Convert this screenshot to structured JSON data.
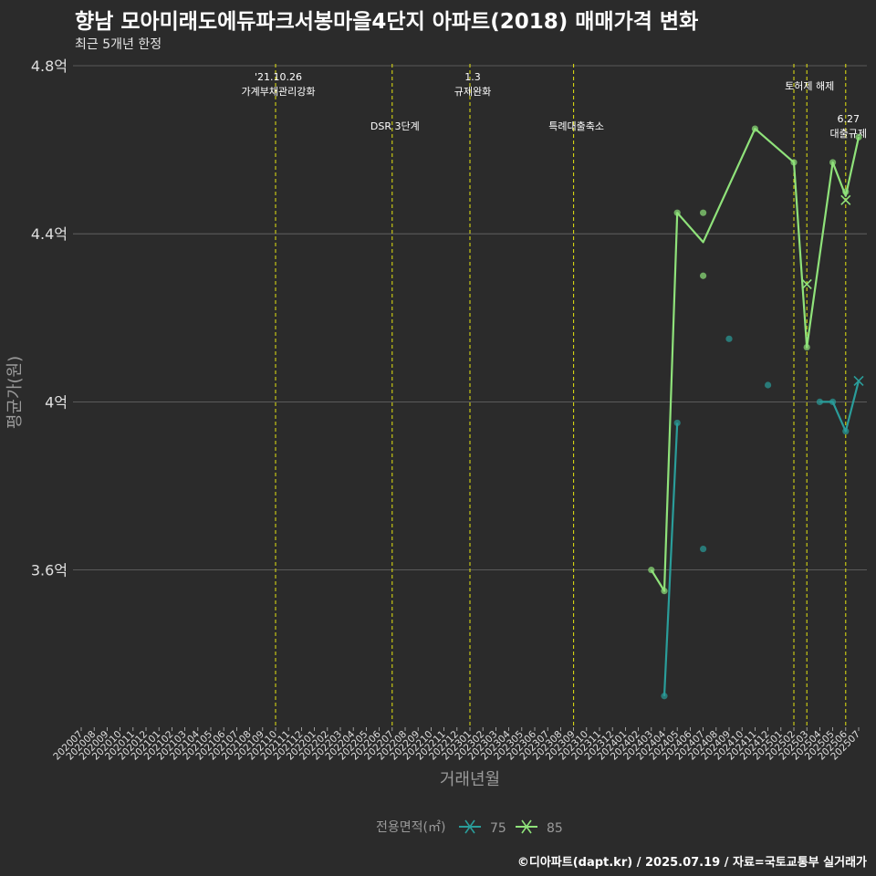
{
  "header": {
    "title": "향남 모아미래도에듀파크서봉마을4단지 아파트(2018) 매매가격 변화",
    "subtitle": "최근 5개년 한정"
  },
  "caption": "©디아파트(dapt.kr) / 2025.07.19 / 자료=국토교통부 실거래가",
  "colors": {
    "background": "#2b2b2b",
    "grid": "#6a6a6a",
    "event_line": "#e5e510",
    "series_75": "#2a9d9a",
    "series_85": "#8fe27a"
  },
  "chart_data": {
    "type": "line",
    "title": "향남 모아미래도에듀파크서봉마을4단지 아파트(2018) 매매가격 변화",
    "subtitle": "최근 5개년 한정",
    "xlabel": "거래년월",
    "ylabel": "평균가(원)",
    "ylim": [
      3.23,
      4.8
    ],
    "yticks": [
      {
        "value": 3.6,
        "label": "3.6억"
      },
      {
        "value": 4.0,
        "label": "4억"
      },
      {
        "value": 4.4,
        "label": "4.4억"
      },
      {
        "value": 4.8,
        "label": "4.8억"
      }
    ],
    "categories": [
      "202007",
      "202008",
      "202009",
      "202010",
      "202011",
      "202012",
      "202101",
      "202102",
      "202103",
      "202104",
      "202105",
      "202106",
      "202107",
      "202108",
      "202109",
      "202110",
      "202111",
      "202112",
      "202201",
      "202202",
      "202203",
      "202204",
      "202205",
      "202206",
      "202207",
      "202208",
      "202209",
      "202210",
      "202211",
      "202212",
      "202301",
      "202302",
      "202303",
      "202304",
      "202305",
      "202306",
      "202307",
      "202308",
      "202309",
      "202310",
      "202311",
      "202312",
      "202401",
      "202402",
      "202403",
      "202404",
      "202405",
      "202406",
      "202407",
      "202408",
      "202409",
      "202410",
      "202411",
      "202412",
      "202501",
      "202502",
      "202503",
      "202504",
      "202505",
      "202506",
      "202507"
    ],
    "legend_title": "전용면적(㎡)",
    "legend_position": "bottom",
    "series": [
      {
        "name": "75",
        "color_key": "series_75",
        "line": [
          {
            "x": "202404",
            "y": 3.3
          },
          {
            "x": "202405",
            "y": 3.95
          }
        ],
        "line2": [
          {
            "x": "202504",
            "y": 4.0
          },
          {
            "x": "202505",
            "y": 4.0
          },
          {
            "x": "202506",
            "y": 3.93
          },
          {
            "x": "202507",
            "y": 4.05
          }
        ],
        "points": [
          {
            "x": "202404",
            "y": 3.3
          },
          {
            "x": "202405",
            "y": 3.95
          },
          {
            "x": "202407",
            "y": 3.65
          },
          {
            "x": "202409",
            "y": 4.15
          },
          {
            "x": "202412",
            "y": 4.04
          },
          {
            "x": "202504",
            "y": 4.0
          },
          {
            "x": "202505",
            "y": 4.0
          },
          {
            "x": "202506",
            "y": 3.93
          }
        ],
        "last_point": {
          "x": "202507",
          "y": 4.05
        }
      },
      {
        "name": "85",
        "color_key": "series_85",
        "line": [
          {
            "x": "202403",
            "y": 3.6
          },
          {
            "x": "202404",
            "y": 3.55
          },
          {
            "x": "202405",
            "y": 4.45
          },
          {
            "x": "202407",
            "y": 4.38
          },
          {
            "x": "202411",
            "y": 4.65
          },
          {
            "x": "202502",
            "y": 4.57
          },
          {
            "x": "202503",
            "y": 4.13
          },
          {
            "x": "202505",
            "y": 4.57
          },
          {
            "x": "202506",
            "y": 4.49
          },
          {
            "x": "202507",
            "y": 4.63
          }
        ],
        "points": [
          {
            "x": "202403",
            "y": 3.6
          },
          {
            "x": "202404",
            "y": 3.55
          },
          {
            "x": "202405",
            "y": 4.45
          },
          {
            "x": "202407",
            "y": 4.45
          },
          {
            "x": "202407",
            "y": 4.3
          },
          {
            "x": "202411",
            "y": 4.65
          },
          {
            "x": "202502",
            "y": 4.57
          },
          {
            "x": "202503",
            "y": 4.13
          },
          {
            "x": "202505",
            "y": 4.57
          },
          {
            "x": "202506",
            "y": 4.5
          },
          {
            "x": "202507",
            "y": 4.63
          }
        ],
        "cross_points": [
          {
            "x": "202503",
            "y": 4.28
          },
          {
            "x": "202506",
            "y": 4.48
          }
        ]
      }
    ],
    "events": [
      {
        "x": "202110",
        "lines": [
          "'21.10.26",
          "가계부채관리강화"
        ],
        "level": 0
      },
      {
        "x": "202207",
        "lines": [
          "DSR 3단계"
        ],
        "level": 2
      },
      {
        "x": "202301",
        "lines": [
          "1.3",
          "규제완화"
        ],
        "level": 0
      },
      {
        "x": "202309",
        "lines": [
          "특례대출축소"
        ],
        "level": 2
      },
      {
        "x": "202502",
        "lines": [],
        "level": 0
      },
      {
        "x": "202503",
        "lines": [
          "토허제 해제"
        ],
        "level": 1
      },
      {
        "x": "202506",
        "lines": [
          "6.27",
          "대출규제"
        ],
        "level": 3
      }
    ]
  }
}
